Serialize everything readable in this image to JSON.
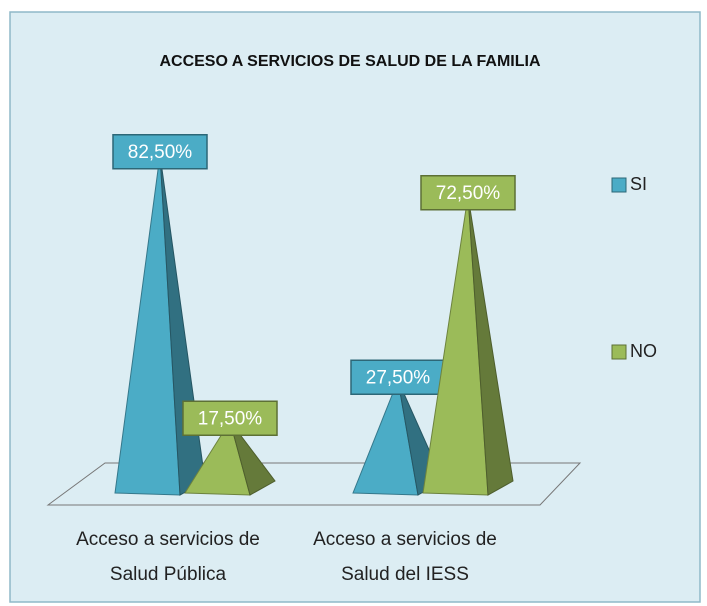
{
  "chart_data": {
    "type": "pyramid3d",
    "title": "ACCESO A SERVICIOS DE SALUD DE LA FAMILIA",
    "categories": [
      "Acceso a servicios de Salud Pública",
      "Acceso  a servicios de Salud del IESS"
    ],
    "series": [
      {
        "name": "SI",
        "color": "#4bacc6",
        "values": [
          82.5,
          27.5
        ],
        "value_labels": [
          "82,50%",
          "27,50%"
        ]
      },
      {
        "name": "NO",
        "color": "#9bbb59",
        "values": [
          17.5,
          72.5
        ],
        "value_labels": [
          "17,50%",
          "72,50%"
        ]
      }
    ],
    "legend": "right"
  }
}
